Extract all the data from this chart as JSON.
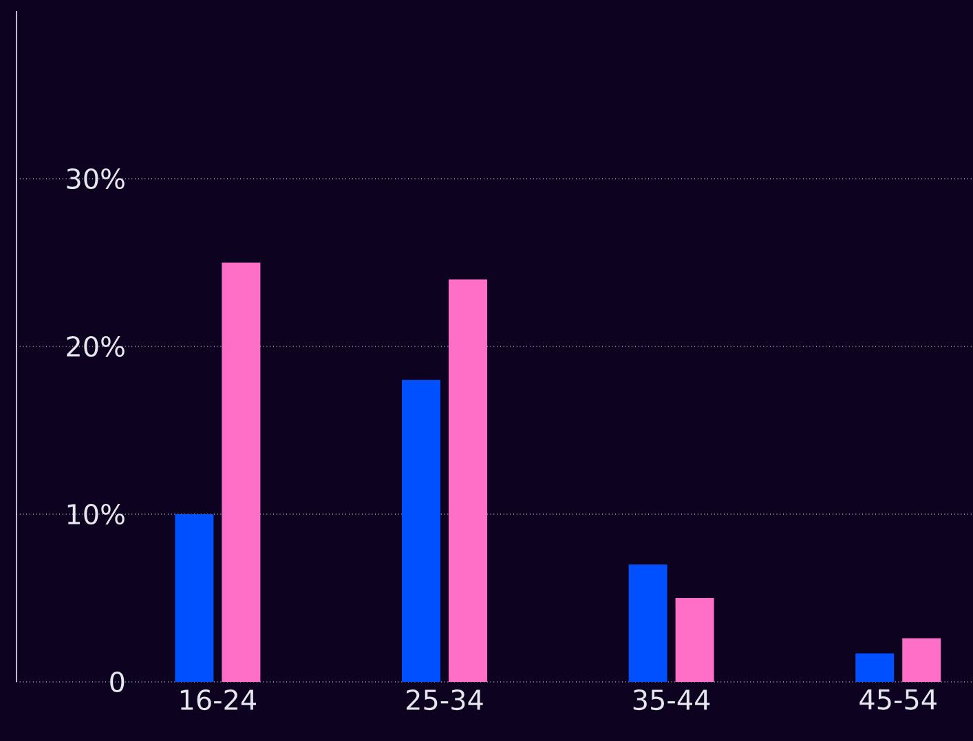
{
  "chart_data": {
    "type": "bar",
    "categories": [
      "16-24",
      "25-34",
      "35-44",
      "45-54"
    ],
    "series": [
      {
        "color": "#0050ff",
        "values": [
          10,
          18,
          7,
          1.7
        ]
      },
      {
        "color": "#ff6ec7",
        "values": [
          25,
          24,
          5,
          2.6
        ]
      }
    ],
    "ylim": [
      0,
      40
    ],
    "yticks": [
      {
        "value": 0,
        "label": "0"
      },
      {
        "value": 10,
        "label": "10%"
      },
      {
        "value": 20,
        "label": "20%"
      },
      {
        "value": 30,
        "label": "30%"
      }
    ],
    "grid": "y"
  }
}
